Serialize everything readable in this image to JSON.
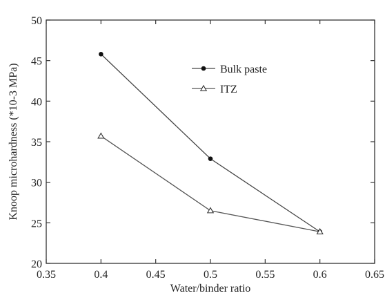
{
  "chart_data": {
    "type": "line",
    "title": "",
    "xlabel": "Water/binder ratio",
    "ylabel": "Knoop microhardness (*10-3 MPa)",
    "xlim": [
      0.35,
      0.65
    ],
    "ylim": [
      20,
      50
    ],
    "xticks": [
      0.35,
      0.4,
      0.45,
      0.5,
      0.55,
      0.6,
      0.65
    ],
    "xtick_labels": [
      "0.35",
      "0.4",
      "0.45",
      "0.5",
      "0.55",
      "0.6",
      "0.65"
    ],
    "yticks": [
      20,
      25,
      30,
      35,
      40,
      45,
      50
    ],
    "ytick_labels": [
      "20",
      "25",
      "30",
      "35",
      "40",
      "45",
      "50"
    ],
    "grid": false,
    "legend_position": "top-right",
    "series": [
      {
        "name": "Bulk paste",
        "marker": "filled-circle",
        "color": "#444444",
        "x": [
          0.4,
          0.5,
          0.6
        ],
        "y": [
          45.8,
          32.9,
          23.9
        ]
      },
      {
        "name": "ITZ",
        "marker": "open-triangle",
        "color": "#555555",
        "x": [
          0.4,
          0.5,
          0.6
        ],
        "y": [
          35.7,
          26.5,
          23.9
        ]
      }
    ]
  }
}
